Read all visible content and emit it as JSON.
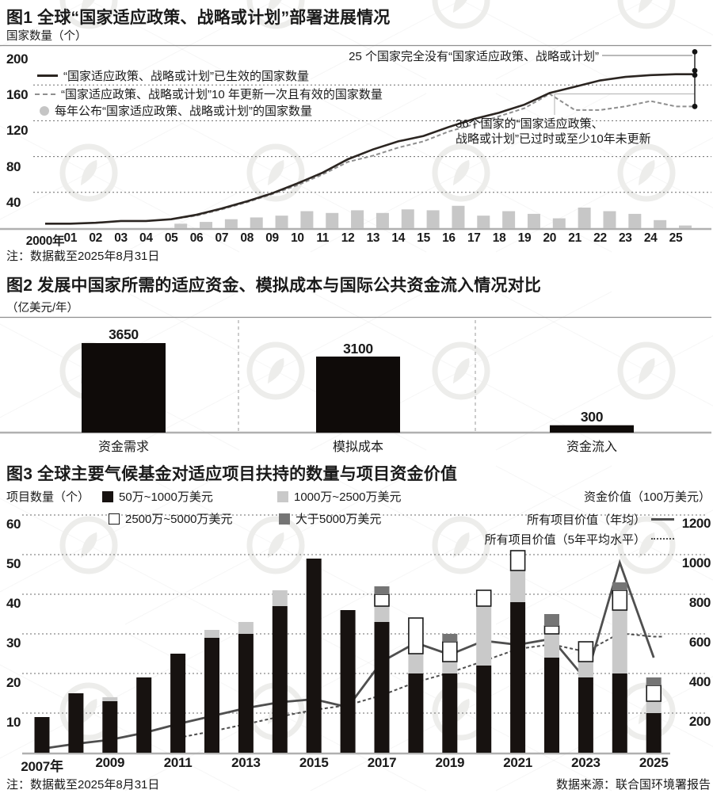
{
  "chart_data": [
    {
      "type": "line",
      "title": "图1 全球“国家适应政策、战略或计划”部署进展情况",
      "ylabel": "国家数量（个）",
      "note": "注：数据截至2025年8月31日",
      "ylim": [
        0,
        200
      ],
      "yticks": [
        200,
        160,
        120,
        80,
        40
      ],
      "x_start_year": 2000,
      "x_tick_labels": [
        "2000年",
        "01",
        "02",
        "03",
        "04",
        "05",
        "06",
        "07",
        "08",
        "09",
        "10",
        "11",
        "12",
        "13",
        "14",
        "15",
        "16",
        "17",
        "18",
        "19",
        "20",
        "21",
        "22",
        "23",
        "24",
        "25"
      ],
      "series": [
        {
          "name": "“国家适应政策、战略或计划”已生效的国家数量",
          "type": "line",
          "style": "solid",
          "values": [
            5,
            5,
            6,
            8,
            8,
            10,
            15,
            22,
            30,
            39,
            50,
            62,
            77,
            88,
            97,
            103,
            113,
            122,
            129,
            138,
            151,
            158,
            165,
            169,
            171,
            172
          ]
        },
        {
          "name": "“国家适应政策、战略或计划”10 年更新一次且有效的国家数量",
          "type": "line",
          "style": "dashed",
          "values": [
            5,
            5,
            6,
            8,
            8,
            10,
            14,
            21,
            29,
            38,
            48,
            60,
            74,
            81,
            90,
            97,
            108,
            116,
            125,
            134,
            150,
            132,
            132,
            136,
            142,
            136
          ]
        },
        {
          "name": "每年公布“国家适应政策、战略或计划”的国家数量",
          "type": "bar",
          "start_year": 2005,
          "values": [
            5,
            7,
            10,
            12,
            14,
            19,
            17,
            20,
            17,
            21,
            20,
            25,
            14,
            19,
            16,
            11,
            23,
            19,
            16,
            9,
            3
          ]
        }
      ],
      "right_markers": [
        197,
        176,
        171,
        136
      ],
      "annotations": {
        "no_policy": "25 个国家完全没有“国家适应政策、战略或计划”",
        "outdated_line1": "36个国家的“国家适应政策、",
        "outdated_line2": "战略或计划”已过时或至少10年未更新"
      }
    },
    {
      "type": "bar",
      "title": "图2 发展中国家所需的适应资金、模拟成本与国际公共资金流入情况对比",
      "unit": "（亿美元/年）",
      "categories": [
        "资金需求",
        "模拟成本",
        "资金流入"
      ],
      "values": [
        3650,
        3100,
        300
      ]
    },
    {
      "type": "stacked-bar+line",
      "title": "图3 全球主要气候基金对适应项目扶持的数量与项目资金价值",
      "note": "注：数据截至2025年8月31日",
      "source": "数据来源：联合国环境署报告",
      "years": [
        2007,
        2008,
        2009,
        2010,
        2011,
        2012,
        2013,
        2014,
        2015,
        2016,
        2017,
        2018,
        2019,
        2020,
        2021,
        2022,
        2023,
        2024,
        2025
      ],
      "x_tick_years": [
        2007,
        2009,
        2011,
        2013,
        2015,
        2017,
        2019,
        2021,
        2023,
        2025
      ],
      "x_tick_labels": [
        "2007年",
        "2009",
        "2011",
        "2013",
        "2015",
        "2017",
        "2019",
        "2021",
        "2023",
        "2025"
      ],
      "left_axis": {
        "label": "项目数量（个）",
        "ticks": [
          60,
          50,
          40,
          30,
          20,
          10
        ],
        "max": 60
      },
      "right_axis": {
        "label": "资金价值（100万美元）",
        "ticks": [
          1200,
          1000,
          800,
          600,
          400,
          200
        ],
        "max": 1200
      },
      "stack_series": [
        {
          "name": "50万~1000万美元",
          "color": "#171210",
          "values": [
            9,
            15,
            13,
            19,
            25,
            29,
            30,
            37,
            49,
            36,
            33,
            20,
            20,
            22,
            38,
            24,
            19,
            20,
            10
          ]
        },
        {
          "name": "1000万~2500万美元",
          "color": "#c9c9c9",
          "values": [
            0,
            0,
            1,
            0,
            0,
            2,
            3,
            4,
            0,
            0,
            4,
            5,
            3,
            15,
            8,
            6,
            4,
            16,
            3
          ]
        },
        {
          "name": "2500万~5000万美元",
          "color": "#ffffff",
          "values": [
            0,
            0,
            0,
            0,
            0,
            0,
            0,
            0,
            0,
            0,
            3,
            9,
            5,
            4,
            5,
            2,
            5,
            5,
            4
          ]
        },
        {
          "name": "大于5000万美元",
          "color": "#757575",
          "values": [
            0,
            0,
            0,
            0,
            0,
            0,
            0,
            0,
            0,
            0,
            2,
            0,
            2,
            0,
            0,
            3,
            0,
            2,
            2
          ]
        }
      ],
      "line_series": [
        {
          "name": "所有项目价值（年均）",
          "style": "solid",
          "start_year": 2007,
          "values": [
            20,
            45,
            65,
            100,
            145,
            185,
            225,
            255,
            270,
            230,
            460,
            555,
            495,
            565,
            545,
            575,
            370,
            960,
            480
          ]
        },
        {
          "name": "所有项目价值（5年平均水平）",
          "style": "dashed",
          "start_year": 2011,
          "values": [
            75,
            108,
            144,
            182,
            216,
            240,
            290,
            356,
            404,
            463,
            524,
            547,
            510,
            603,
            586
          ]
        }
      ]
    }
  ]
}
